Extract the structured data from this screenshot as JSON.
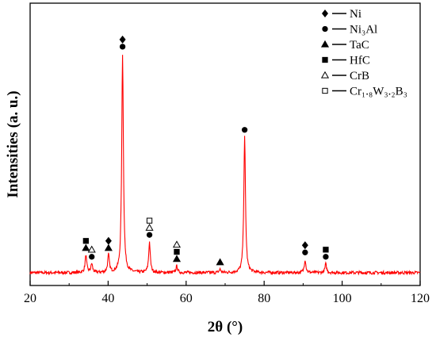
{
  "chart_data": {
    "type": "line",
    "xlabel": "2θ (°)",
    "ylabel": "Intensities (a. u.)",
    "xlim": [
      20,
      120
    ],
    "xticks": [
      20,
      40,
      60,
      80,
      100,
      120
    ],
    "y_ticks_shown": false,
    "color": "#ff0000",
    "peaks": [
      {
        "x": 34.3,
        "y": 8
      },
      {
        "x": 35.8,
        "y": 4
      },
      {
        "x": 40.1,
        "y": 8
      },
      {
        "x": 43.7,
        "y": 100
      },
      {
        "x": 50.6,
        "y": 14
      },
      {
        "x": 57.6,
        "y": 3
      },
      {
        "x": 68.7,
        "y": 1.5
      },
      {
        "x": 75.0,
        "y": 62
      },
      {
        "x": 90.5,
        "y": 6
      },
      {
        "x": 95.8,
        "y": 4
      }
    ],
    "baseline": 1.5,
    "noise": 0.7,
    "legend": {
      "position": "top-right",
      "entries": [
        {
          "symbol": "filled-diamond",
          "label": "Ni"
        },
        {
          "symbol": "filled-circle",
          "label": "Ni₃Al"
        },
        {
          "symbol": "filled-triangle",
          "label": "TaC"
        },
        {
          "symbol": "filled-square",
          "label": "HfC"
        },
        {
          "symbol": "open-triangle",
          "label": "CrB"
        },
        {
          "symbol": "open-square",
          "label": "Cr₁.₈W₃.₂B₃"
        }
      ]
    },
    "peak_markers": [
      {
        "x": 34.3,
        "symbols": [
          "filled-triangle",
          "filled-square"
        ]
      },
      {
        "x": 35.8,
        "symbols": [
          "filled-circle",
          "open-triangle"
        ]
      },
      {
        "x": 40.1,
        "symbols": [
          "filled-triangle",
          "filled-diamond"
        ]
      },
      {
        "x": 43.7,
        "symbols": [
          "filled-circle",
          "filled-diamond"
        ]
      },
      {
        "x": 50.6,
        "symbols": [
          "filled-circle",
          "open-triangle",
          "open-square"
        ]
      },
      {
        "x": 57.6,
        "symbols": [
          "filled-triangle",
          "filled-square",
          "open-triangle"
        ]
      },
      {
        "x": 68.7,
        "symbols": [
          "filled-triangle"
        ]
      },
      {
        "x": 75.0,
        "symbols": [
          "filled-circle"
        ]
      },
      {
        "x": 90.5,
        "symbols": [
          "filled-circle",
          "filled-diamond"
        ]
      },
      {
        "x": 95.8,
        "symbols": [
          "filled-circle",
          "filled-square"
        ]
      }
    ]
  }
}
